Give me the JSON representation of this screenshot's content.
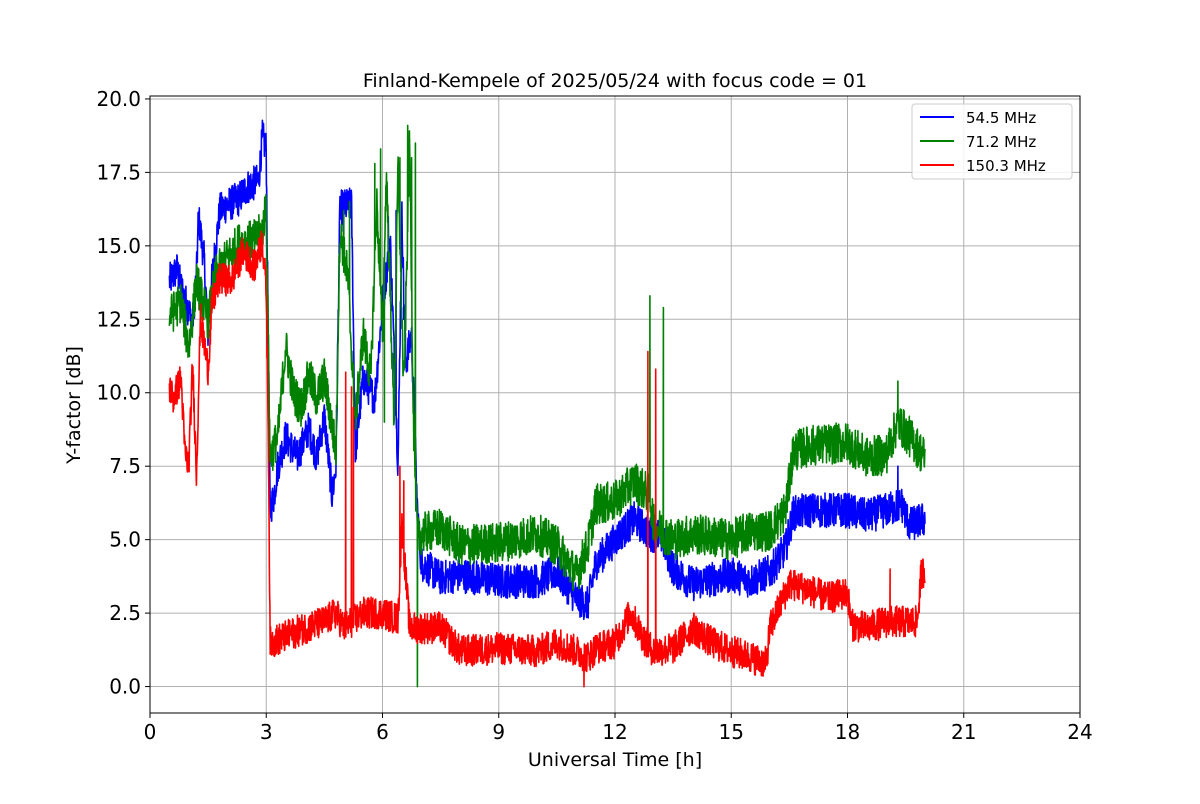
{
  "chart_data": {
    "type": "line",
    "title": "Finland-Kempele of 2025/05/24 with focus code = 01",
    "xlabel": "Universal Time [h]",
    "ylabel": "Y-factor [dB]",
    "xlim": [
      0,
      24
    ],
    "ylim": [
      -0.9,
      20.1
    ],
    "xticks": [
      0,
      3,
      6,
      9,
      12,
      15,
      18,
      21,
      24
    ],
    "xtick_labels": [
      "0",
      "3",
      "6",
      "9",
      "12",
      "15",
      "18",
      "21",
      "24"
    ],
    "yticks": [
      0,
      2.5,
      5,
      7.5,
      10,
      12.5,
      15,
      17.5,
      20
    ],
    "ytick_labels": [
      "0.0",
      "2.5",
      "5.0",
      "7.5",
      "10.0",
      "12.5",
      "15.0",
      "17.5",
      "20.0"
    ],
    "grid": true,
    "legend_position": "top-right",
    "series": [
      {
        "name": "54.5 MHz",
        "color": "#0000ff",
        "noise": 0.6,
        "points": [
          [
            0.5,
            13.8
          ],
          [
            0.7,
            14.2
          ],
          [
            0.8,
            13.6
          ],
          [
            1.0,
            12.8
          ],
          [
            1.1,
            12.4
          ],
          [
            1.2,
            14.0
          ],
          [
            1.25,
            16.0
          ],
          [
            1.4,
            14.5
          ],
          [
            1.5,
            12.0
          ],
          [
            1.6,
            13.9
          ],
          [
            1.8,
            16.2
          ],
          [
            2.0,
            16.4
          ],
          [
            2.3,
            16.6
          ],
          [
            2.5,
            17.0
          ],
          [
            2.8,
            17.2
          ],
          [
            2.9,
            18.7
          ],
          [
            3.0,
            18.3
          ],
          [
            3.05,
            12.0
          ],
          [
            3.1,
            6.0
          ],
          [
            3.2,
            6.5
          ],
          [
            3.3,
            7.5
          ],
          [
            3.5,
            8.5
          ],
          [
            3.8,
            7.8
          ],
          [
            4.1,
            8.8
          ],
          [
            4.3,
            7.8
          ],
          [
            4.5,
            9.2
          ],
          [
            4.7,
            6.5
          ],
          [
            4.8,
            7.5
          ],
          [
            4.9,
            16.3
          ],
          [
            5.2,
            16.4
          ],
          [
            5.3,
            8.0
          ],
          [
            5.5,
            10.5
          ],
          [
            5.8,
            9.8
          ],
          [
            6.0,
            13.0
          ],
          [
            6.2,
            15.2
          ],
          [
            6.4,
            7.5
          ],
          [
            6.5,
            16.0
          ],
          [
            6.6,
            11.0
          ],
          [
            6.75,
            12.0
          ],
          [
            6.9,
            6.0
          ],
          [
            7.0,
            4.2
          ],
          [
            7.5,
            3.7
          ],
          [
            8.0,
            3.8
          ],
          [
            9.0,
            3.6
          ],
          [
            10.0,
            3.6
          ],
          [
            10.5,
            3.9
          ],
          [
            11.0,
            3.0
          ],
          [
            11.3,
            2.8
          ],
          [
            11.5,
            4.2
          ],
          [
            12.0,
            5.0
          ],
          [
            12.5,
            5.7
          ],
          [
            12.9,
            5.2
          ],
          [
            13.2,
            5.1
          ],
          [
            13.5,
            4.0
          ],
          [
            14.0,
            3.5
          ],
          [
            15.0,
            3.8
          ],
          [
            15.5,
            3.6
          ],
          [
            16.0,
            3.9
          ],
          [
            16.4,
            4.7
          ],
          [
            16.6,
            5.9
          ],
          [
            17.0,
            6.0
          ],
          [
            18.0,
            6.0
          ],
          [
            18.5,
            5.8
          ],
          [
            19.0,
            6.0
          ],
          [
            19.4,
            6.2
          ],
          [
            19.6,
            5.5
          ],
          [
            20.0,
            5.7
          ]
        ]
      },
      {
        "name": "71.2 MHz",
        "color": "#008000",
        "noise": 0.7,
        "points": [
          [
            0.5,
            12.6
          ],
          [
            0.8,
            13.1
          ],
          [
            1.0,
            11.5
          ],
          [
            1.2,
            13.8
          ],
          [
            1.5,
            12.5
          ],
          [
            1.7,
            14.0
          ],
          [
            2.0,
            14.6
          ],
          [
            2.3,
            15.1
          ],
          [
            2.7,
            15.2
          ],
          [
            2.9,
            15.5
          ],
          [
            3.0,
            16.5
          ],
          [
            3.05,
            12.0
          ],
          [
            3.1,
            7.8
          ],
          [
            3.3,
            8.5
          ],
          [
            3.5,
            11.6
          ],
          [
            3.7,
            10.0
          ],
          [
            3.9,
            9.5
          ],
          [
            4.1,
            10.6
          ],
          [
            4.3,
            9.8
          ],
          [
            4.5,
            10.5
          ],
          [
            4.8,
            8.0
          ],
          [
            4.9,
            15.5
          ],
          [
            5.1,
            14.0
          ],
          [
            5.3,
            9.0
          ],
          [
            5.5,
            12.0
          ],
          [
            5.7,
            10.5
          ],
          [
            5.85,
            16.5
          ],
          [
            6.0,
            12.0
          ],
          [
            6.1,
            17.5
          ],
          [
            6.3,
            9.0
          ],
          [
            6.4,
            17.8
          ],
          [
            6.55,
            10.0
          ],
          [
            6.7,
            18.5
          ],
          [
            6.8,
            9.0
          ],
          [
            6.9,
            5.0
          ],
          [
            7.0,
            5.2
          ],
          [
            7.5,
            5.4
          ],
          [
            8.0,
            4.8
          ],
          [
            9.0,
            4.9
          ],
          [
            10.0,
            5.2
          ],
          [
            10.5,
            4.8
          ],
          [
            11.0,
            3.8
          ],
          [
            11.3,
            4.8
          ],
          [
            11.5,
            6.2
          ],
          [
            12.0,
            6.3
          ],
          [
            12.5,
            7.0
          ],
          [
            12.9,
            6.5
          ],
          [
            13.0,
            5.5
          ],
          [
            13.5,
            5.0
          ],
          [
            14.0,
            5.2
          ],
          [
            15.0,
            5.0
          ],
          [
            15.5,
            5.3
          ],
          [
            16.0,
            5.3
          ],
          [
            16.4,
            6.0
          ],
          [
            16.6,
            8.0
          ],
          [
            17.0,
            8.2
          ],
          [
            18.0,
            8.3
          ],
          [
            18.5,
            7.8
          ],
          [
            19.0,
            7.9
          ],
          [
            19.3,
            9.0
          ],
          [
            19.6,
            8.5
          ],
          [
            20.0,
            7.8
          ]
        ]
      },
      {
        "name": "150.3 MHz",
        "color": "#ff0000",
        "noise": 0.55,
        "points": [
          [
            0.5,
            10.2
          ],
          [
            0.6,
            9.8
          ],
          [
            0.8,
            10.5
          ],
          [
            0.9,
            8.0
          ],
          [
            1.0,
            7.5
          ],
          [
            1.1,
            11.0
          ],
          [
            1.2,
            7.2
          ],
          [
            1.3,
            12.5
          ],
          [
            1.5,
            10.8
          ],
          [
            1.6,
            13.0
          ],
          [
            1.8,
            13.9
          ],
          [
            2.1,
            13.8
          ],
          [
            2.4,
            14.8
          ],
          [
            2.7,
            14.3
          ],
          [
            2.9,
            15.2
          ],
          [
            3.0,
            13.5
          ],
          [
            3.05,
            9.0
          ],
          [
            3.1,
            1.5
          ],
          [
            3.5,
            1.7
          ],
          [
            4.0,
            2.0
          ],
          [
            4.5,
            2.2
          ],
          [
            4.8,
            2.5
          ],
          [
            5.0,
            2.0
          ],
          [
            5.3,
            2.3
          ],
          [
            5.5,
            2.5
          ],
          [
            6.0,
            2.5
          ],
          [
            6.4,
            2.3
          ],
          [
            6.5,
            5.5
          ],
          [
            6.7,
            2.0
          ],
          [
            7.0,
            2.0
          ],
          [
            7.5,
            2.0
          ],
          [
            8.0,
            1.2
          ],
          [
            9.0,
            1.3
          ],
          [
            10.0,
            1.2
          ],
          [
            10.5,
            1.5
          ],
          [
            11.0,
            1.2
          ],
          [
            11.3,
            1.0
          ],
          [
            11.5,
            1.3
          ],
          [
            12.0,
            1.5
          ],
          [
            12.4,
            2.5
          ],
          [
            12.8,
            1.5
          ],
          [
            13.0,
            1.2
          ],
          [
            13.5,
            1.3
          ],
          [
            14.0,
            2.0
          ],
          [
            14.5,
            1.5
          ],
          [
            15.0,
            1.2
          ],
          [
            15.5,
            1.0
          ],
          [
            15.9,
            0.8
          ],
          [
            16.0,
            2.0
          ],
          [
            16.5,
            3.5
          ],
          [
            17.0,
            3.3
          ],
          [
            17.5,
            3.0
          ],
          [
            18.0,
            3.2
          ],
          [
            18.1,
            2.1
          ],
          [
            18.5,
            2.0
          ],
          [
            19.0,
            2.2
          ],
          [
            19.5,
            2.2
          ],
          [
            19.8,
            2.2
          ],
          [
            19.9,
            3.8
          ],
          [
            20.0,
            4.0
          ]
        ]
      }
    ],
    "spikes": [
      {
        "series": 0,
        "x": [
          4.95,
          5.05,
          5.15,
          6.15,
          6.35,
          6.55,
          19.3
        ],
        "y": [
          15.5,
          16.8,
          16.5,
          16.0,
          16.2,
          12.5,
          7.5
        ]
      },
      {
        "series": 1,
        "x": [
          5.0,
          5.15,
          5.8,
          5.95,
          6.05,
          6.45,
          6.65,
          6.75,
          6.85,
          6.9,
          12.9,
          13.25,
          19.3
        ],
        "y": [
          16.2,
          16.5,
          17.8,
          18.3,
          9.0,
          18.0,
          19.1,
          18.0,
          18.5,
          0.0,
          13.3,
          12.9,
          10.4
        ]
      },
      {
        "series": 2,
        "x": [
          5.05,
          5.2,
          5.25,
          6.45,
          6.55,
          11.2,
          12.85,
          13.05,
          19.1
        ],
        "y": [
          10.7,
          10.2,
          9.5,
          7.5,
          7.0,
          0.0,
          11.4,
          10.8,
          4.0
        ]
      }
    ]
  }
}
